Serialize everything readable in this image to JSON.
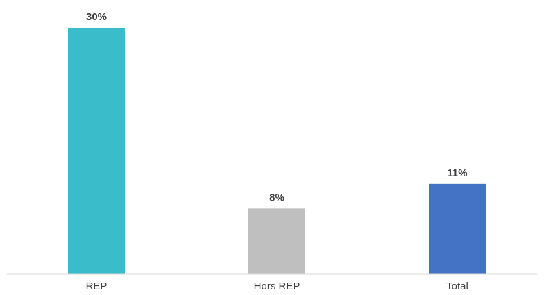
{
  "chart_data": {
    "type": "bar",
    "categories": [
      "REP",
      "Hors REP",
      "Total"
    ],
    "values": [
      30,
      8,
      11
    ],
    "value_labels": [
      "30%",
      "8%",
      "11%"
    ],
    "colors": [
      "#3bbccb",
      "#bfbfbf",
      "#4472c4"
    ],
    "title": "",
    "xlabel": "",
    "ylabel": "",
    "ylim": [
      0,
      30
    ],
    "grid": false,
    "legend": "none"
  }
}
